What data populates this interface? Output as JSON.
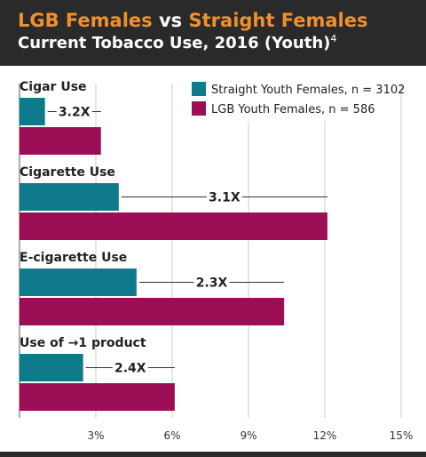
{
  "header": {
    "group1": "LGB Females",
    "vs": "vs",
    "group2": "Straight Females",
    "subtitle": "Current Tobacco Use, 2016 (Youth)",
    "footnote": "4"
  },
  "colors": {
    "header_bg": "#2a2a2a",
    "accent_orange": "#f0902c",
    "straight": "#0f7a8c",
    "lgb": "#9c0f55"
  },
  "chart_data": {
    "type": "bar",
    "orientation": "horizontal",
    "title": "Current Tobacco Use, 2016 (Youth)",
    "categories": [
      "Cigar Use",
      "Cigarette Use",
      "E-cigarette Use",
      "Use of →1 product"
    ],
    "series": [
      {
        "name": "Straight Youth Females, n = 3102",
        "values": [
          1.0,
          3.9,
          4.6,
          2.5
        ]
      },
      {
        "name": "LGB Youth Females, n = 586",
        "values": [
          3.2,
          12.1,
          10.4,
          6.1
        ]
      }
    ],
    "ratios": [
      "3.2X",
      "3.1X",
      "2.3X",
      "2.4X"
    ],
    "xticks": [
      "3%",
      "6%",
      "9%",
      "12%",
      "15%"
    ],
    "tick_values": [
      3,
      6,
      9,
      12,
      15
    ],
    "xlim": [
      0,
      15
    ],
    "grid": true,
    "legend_position": "top-right"
  }
}
